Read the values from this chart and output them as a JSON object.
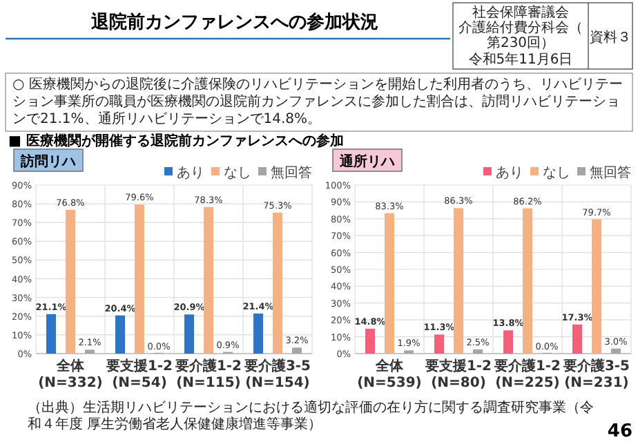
{
  "chart_data": [
    {
      "type": "bar",
      "title": "訪問リハ",
      "categories": [
        "全体\n(N=332)",
        "要支援1-2\n(N=54)",
        "要介護1-2\n(N=115)",
        "要介護3-5\n(N=154)"
      ],
      "series": [
        {
          "name": "あり",
          "color": "#2e75c6",
          "values": [
            21.1,
            20.4,
            20.9,
            21.4
          ],
          "value_labels": [
            "21.1%",
            "20.4%",
            "20.9%",
            "21.4%"
          ]
        },
        {
          "name": "なし",
          "color": "#f4b183",
          "values": [
            76.8,
            79.6,
            78.3,
            75.3
          ],
          "value_labels": [
            "76.8%",
            "79.6%",
            "78.3%",
            "75.3%"
          ]
        },
        {
          "name": "無回答",
          "color": "#a5a5a5",
          "values": [
            2.1,
            0,
            0.9,
            3.2
          ],
          "value_labels": [
            "2.1%",
            "0.0%",
            "0.9%",
            "3.2%"
          ]
        }
      ],
      "ylim": [
        0,
        90
      ],
      "yticks": [
        {
          "value": 0,
          "label": "0%"
        },
        {
          "value": 10,
          "label": "10%"
        },
        {
          "value": 20,
          "label": "20%"
        },
        {
          "value": 30,
          "label": "30%"
        },
        {
          "value": 40,
          "label": "40%"
        },
        {
          "value": 50,
          "label": "50%"
        },
        {
          "value": 60,
          "label": "60%"
        },
        {
          "value": 70,
          "label": "70%"
        },
        {
          "value": 80,
          "label": "80%"
        },
        {
          "value": 90,
          "label": "90%"
        }
      ],
      "grid": true,
      "legend": "top right",
      "annotations": [
        "退院前カンファレンスへの参加状況",
        "社会保障審議会",
        "介護給付費分科会（第230回）",
        "令和5年11月6日",
        "資料３",
        "○ 医療機関からの退院後に介護保険のリハビリテーションを開始した利用者のうち、リハビリテーション事業所の職員が医療機関の退院前カンファレンスに参加した割合は、訪問リハビリテーションで21.1%、通所リハビリテーションで14.8%。",
        "■ 医療機関が開催する退院前カンファレンスへの参加",
        "（出典）生活期リハビリテーションにおける適切な評価の在り方に関する調査研究事業（令和４年度 厚生労働省老人保健健康増進等事業）",
        "46"
      ]
    },
    {
      "type": "bar",
      "title": "通所リハ",
      "categories": [
        "全体\n(N=539)",
        "要支援1-2\n(N=80)",
        "要介護1-2\n(N=225)",
        "要介護3-5\n(N=231)"
      ],
      "series": [
        {
          "name": "あり",
          "color": "#f4607a",
          "values": [
            14.8,
            11.3,
            13.8,
            17.3
          ],
          "value_labels": [
            "14.8%",
            "11.3%",
            "13.8%",
            "17.3%"
          ]
        },
        {
          "name": "なし",
          "color": "#f4b183",
          "values": [
            83.3,
            86.3,
            86.2,
            79.7
          ],
          "value_labels": [
            "83.3%",
            "86.3%",
            "86.2%",
            "79.7%"
          ]
        },
        {
          "name": "無回答",
          "color": "#a5a5a5",
          "values": [
            1.9,
            2.5,
            0,
            3.0
          ],
          "value_labels": [
            "1.9%",
            "2.5%",
            "0.0%",
            "3.0%"
          ]
        }
      ],
      "ylim": [
        0,
        100
      ],
      "yticks": [
        {
          "value": 0,
          "label": "0%"
        },
        {
          "value": 10,
          "label": "10%"
        },
        {
          "value": 20,
          "label": "20%"
        },
        {
          "value": 30,
          "label": "30%"
        },
        {
          "value": 40,
          "label": "40%"
        },
        {
          "value": 50,
          "label": "50%"
        },
        {
          "value": 60,
          "label": "60%"
        },
        {
          "value": 70,
          "label": "70%"
        },
        {
          "value": 80,
          "label": "80%"
        },
        {
          "value": 90,
          "label": "90%"
        },
        {
          "value": 100,
          "label": "100%"
        }
      ],
      "grid": true,
      "legend": "top right"
    }
  ]
}
